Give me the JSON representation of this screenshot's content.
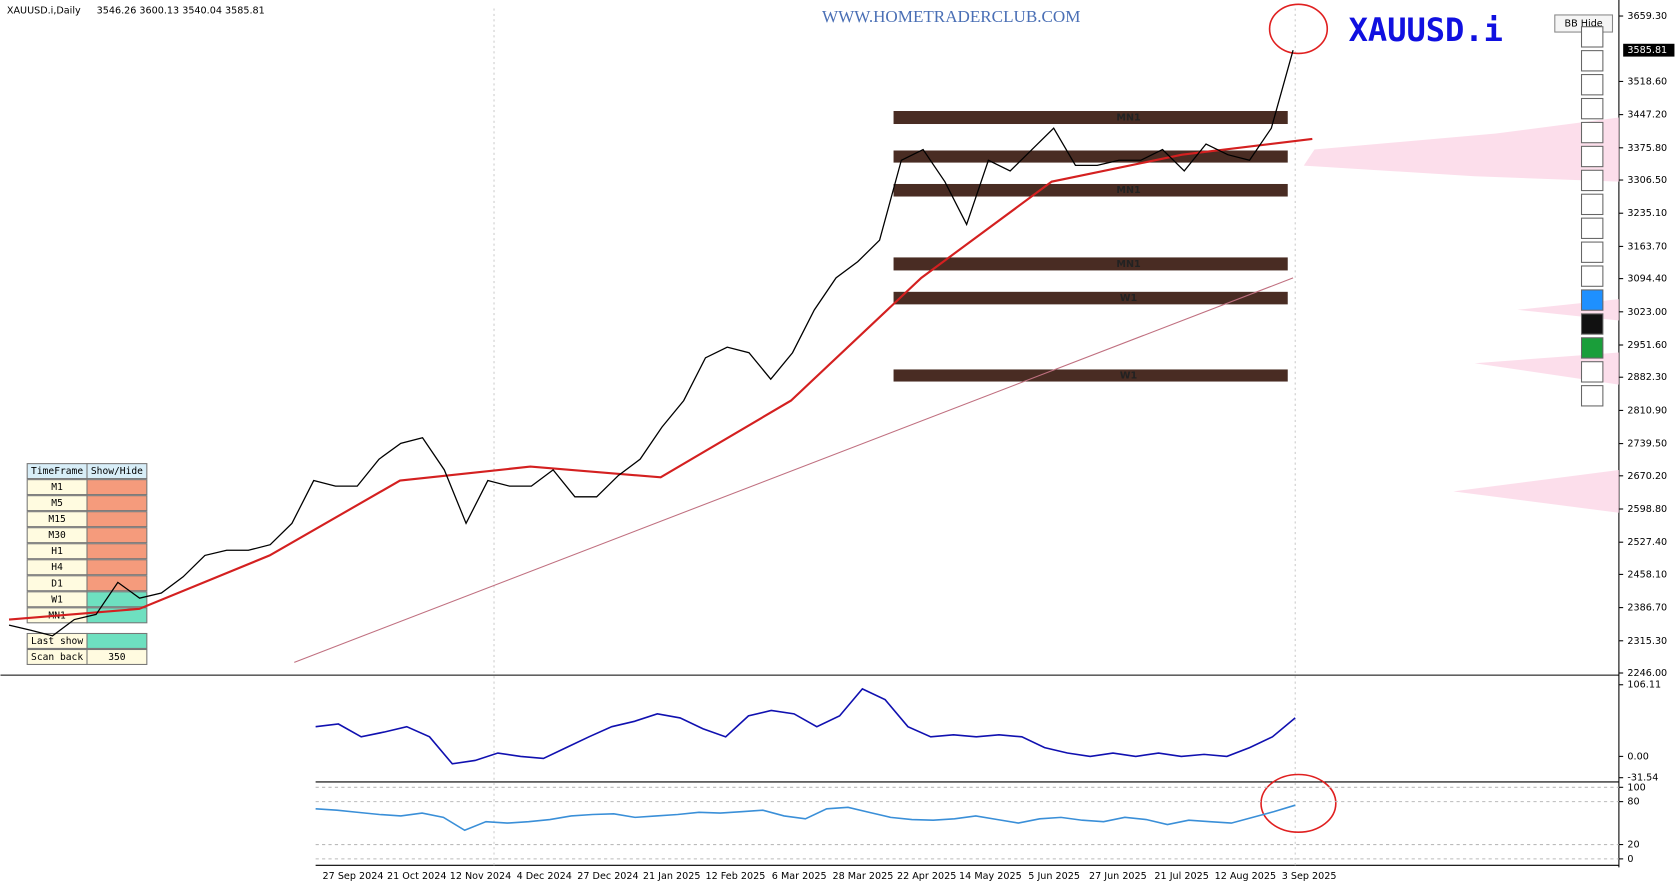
{
  "header": {
    "symbol": "XAUUSD.i,Daily",
    "ohlc": "3546.26 3600.13 3540.04 3585.81"
  },
  "watermark": "WWW.HOMETRADERCLUB.COM",
  "symbol_label": "XAUUSD.i",
  "bb_button": "BB Hide",
  "timeframe_panel": {
    "headers": [
      "TimeFrame",
      "Show/Hide"
    ],
    "rows": [
      "M1",
      "M5",
      "M15",
      "M30",
      "H1",
      "H4",
      "D1",
      "W1",
      "MN1"
    ],
    "shown": [
      false,
      false,
      false,
      false,
      false,
      false,
      false,
      true,
      true
    ],
    "last_show": "Last show",
    "scan_back": "Scan back",
    "scan_back_value": 350
  },
  "chart_data": [
    {
      "type": "line",
      "color": "#000000",
      "values": [
        2349,
        2338,
        2326,
        2361,
        2372,
        2441,
        2407,
        2418,
        2453,
        2499,
        2510,
        2510,
        2522,
        2568,
        2660,
        2648,
        2648,
        2706,
        2740,
        2752,
        2683,
        2568,
        2660,
        2648,
        2648,
        2683,
        2625,
        2625,
        2671,
        2706,
        2775,
        2832,
        2924,
        2947,
        2935,
        2878,
        2935,
        3027,
        3096,
        3131,
        3177,
        3349,
        3372,
        3303,
        3211,
        3349,
        3326,
        3372,
        3418,
        3338,
        3338,
        3349,
        3349,
        3372,
        3326,
        3384,
        3361,
        3349,
        3418,
        3585.81
      ],
      "current_price": 3585.81,
      "ylim": [
        2246,
        3659.3
      ],
      "yticks": [
        {
          "value": 3659.3,
          "label": "3659.30"
        },
        {
          "value": 3518.6,
          "label": "3518.60"
        },
        {
          "value": 3447.2,
          "label": "3447.20"
        },
        {
          "value": 3375.8,
          "label": "3375.80"
        },
        {
          "value": 3306.5,
          "label": "3306.50"
        },
        {
          "value": 3235.1,
          "label": "3235.10"
        },
        {
          "value": 3163.7,
          "label": "3163.70"
        },
        {
          "value": 3094.4,
          "label": "3094.40"
        },
        {
          "value": 3023,
          "label": "3023.00"
        },
        {
          "value": 2951.6,
          "label": "2951.60"
        },
        {
          "value": 2882.3,
          "label": "2882.30"
        },
        {
          "value": 2810.9,
          "label": "2810.90"
        },
        {
          "value": 2739.5,
          "label": "2739.50"
        },
        {
          "value": 2670.2,
          "label": "2670.20"
        },
        {
          "value": 2598.8,
          "label": "2598.80"
        },
        {
          "value": 2527.4,
          "label": "2527.40"
        },
        {
          "value": 2458.1,
          "label": "2458.10"
        },
        {
          "value": 2386.7,
          "label": "2386.70"
        },
        {
          "value": 2315.3,
          "label": "2315.30"
        },
        {
          "value": 2246,
          "label": "2246.00"
        }
      ],
      "x_labels": [
        "27 Sep 2024",
        "21 Oct 2024",
        "12 Nov 2024",
        "4 Dec 2024",
        "27 Dec 2024",
        "21 Jan 2025",
        "12 Feb 2025",
        "6 Mar 2025",
        "28 Mar 2025",
        "22 Apr 2025",
        "14 May 2025",
        "5 Jun 2025",
        "27 Jun 2025",
        "21 Jul 2025",
        "12 Aug 2025",
        "3 Sep 2025"
      ],
      "moving_average": {
        "color": "#d42020",
        "values": [
          2361,
          2384,
          2499,
          2660,
          2690,
          2667,
          2832,
          3096,
          3303,
          3361,
          3395
        ]
      },
      "long_moving_average": {
        "color": "#c07080",
        "values": [
          2269,
          3096
        ]
      },
      "zone_color": "#3a1a10",
      "zones": [
        {
          "top": 3455,
          "bottom": 3427,
          "label": "MN1"
        },
        {
          "top": 3370,
          "bottom": 3344
        },
        {
          "top": 3298,
          "bottom": 3271,
          "label": "MN1"
        },
        {
          "top": 3140,
          "bottom": 3112,
          "label": "MN1"
        },
        {
          "top": 3066,
          "bottom": 3039,
          "label": "W1"
        },
        {
          "top": 2899,
          "bottom": 2873,
          "label": "W1"
        }
      ]
    },
    {
      "type": "line",
      "color": "#1010b0",
      "values": [
        44,
        48,
        29,
        36,
        44,
        29,
        -11,
        -6,
        5,
        0,
        -3,
        13,
        29,
        44,
        52,
        63,
        57,
        41,
        29,
        60,
        68,
        63,
        44,
        60,
        100,
        84,
        44,
        29,
        32,
        29,
        32,
        29,
        13,
        5,
        0,
        5,
        0,
        5,
        0,
        3,
        0,
        13,
        29,
        57
      ],
      "ylim": [
        -31.54,
        106.11
      ],
      "yticks": [
        106.11,
        {
          "value": 0,
          "label": "0.00"
        },
        -31.54
      ]
    },
    {
      "type": "line",
      "color": "#3a8fd8",
      "values": [
        70,
        68,
        65,
        62,
        60,
        64,
        58,
        40,
        52,
        50,
        52,
        55,
        60,
        62,
        63,
        58,
        60,
        62,
        65,
        64,
        66,
        68,
        60,
        56,
        70,
        72,
        65,
        58,
        55,
        54,
        56,
        60,
        55,
        50,
        56,
        58,
        54,
        52,
        58,
        55,
        48,
        54,
        52,
        50,
        58,
        66,
        75
      ],
      "ylim": [
        0,
        100
      ],
      "yticks": [
        100,
        80,
        20,
        0
      ]
    }
  ]
}
